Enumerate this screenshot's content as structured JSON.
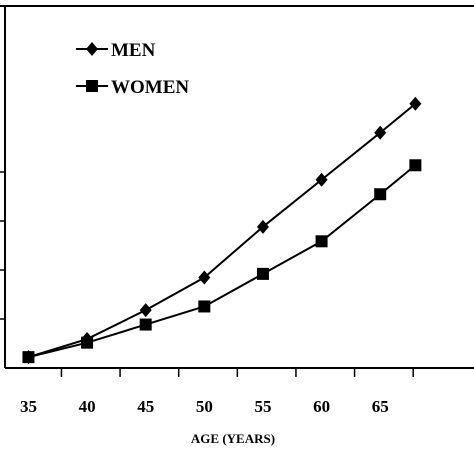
{
  "chart_data": {
    "type": "line",
    "x": [
      35,
      40,
      45,
      50,
      55,
      60,
      65
    ],
    "x_tick_labels": [
      "35",
      "40",
      "45",
      "50",
      "55",
      "60",
      "65"
    ],
    "xlabel": "AGE (YEARS)",
    "ylabel": "",
    "title": "",
    "xlim": [
      33,
      73
    ],
    "ylim": [
      0,
      100
    ],
    "legend_position": "top-left",
    "grid": false,
    "series": [
      {
        "name": "MEN",
        "marker": "diamond",
        "color": "#000000",
        "x": [
          35,
          40,
          45,
          50,
          55,
          60,
          65,
          68
        ],
        "values": [
          3,
          8,
          16,
          25,
          39,
          52,
          65,
          73
        ]
      },
      {
        "name": "WOMEN",
        "marker": "square",
        "color": "#000000",
        "x": [
          35,
          40,
          45,
          50,
          55,
          60,
          65,
          68
        ],
        "values": [
          3,
          7,
          12,
          17,
          26,
          35,
          48,
          56
        ]
      }
    ]
  }
}
